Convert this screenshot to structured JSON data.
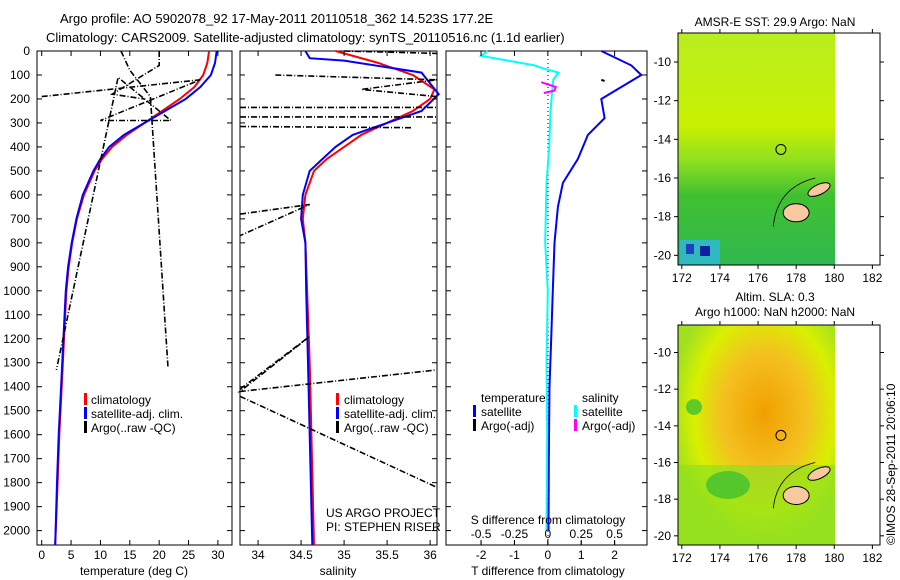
{
  "title_line1": "Argo profile: AO 5902078_92 17-May-2011 20110518_362 14.523S 177.2E",
  "title_line2": "Climatology: CARS2009. Satellite-adjusted climatology: synTS_20110516.nc (1.1d earlier)",
  "colors": {
    "climatology": "#ff0000",
    "satellite": "#0000ff",
    "argo": "#000000",
    "salinity_sat": "#00ffff",
    "salinity_argo": "#ff00ff"
  },
  "chart_data": [
    {
      "type": "line",
      "name": "temperature",
      "xlabel": "temperature (deg C)",
      "ylabel": "depth",
      "xlim": [
        -0.8,
        32.4
      ],
      "ylim": [
        2060,
        0
      ],
      "xticks": [
        "0",
        "5",
        "10",
        "15",
        "20",
        "25",
        "30"
      ],
      "xtick_values": [
        0,
        5,
        10,
        15,
        20,
        25,
        30
      ],
      "yticks": [
        "0",
        "100",
        "200",
        "300",
        "400",
        "500",
        "600",
        "700",
        "800",
        "900",
        "1000",
        "1100",
        "1200",
        "1300",
        "1400",
        "1500",
        "1600",
        "1700",
        "1800",
        "1900",
        "2000"
      ],
      "legend": [
        "climatology",
        "satellite-adj. clim.",
        "Argo(..raw -QC)"
      ],
      "series": [
        {
          "name": "climatology",
          "color": "#ff0000",
          "points": [
            [
              28.5,
              0
            ],
            [
              28.2,
              50
            ],
            [
              27.5,
              100
            ],
            [
              26,
              150
            ],
            [
              23.5,
              200
            ],
            [
              20.5,
              250
            ],
            [
              17.5,
              300
            ],
            [
              14.5,
              350
            ],
            [
              12,
              400
            ],
            [
              10.3,
              450
            ],
            [
              9,
              500
            ],
            [
              7.2,
              600
            ],
            [
              6,
              700
            ],
            [
              5.2,
              800
            ],
            [
              4.6,
              900
            ],
            [
              4.2,
              1000
            ],
            [
              3.8,
              1200
            ],
            [
              3.4,
              1400
            ],
            [
              3,
              1600
            ],
            [
              2.7,
              1800
            ],
            [
              2.3,
              2060
            ]
          ]
        },
        {
          "name": "satellite-adj. clim.",
          "color": "#0000ff",
          "points": [
            [
              29.8,
              0
            ],
            [
              29.5,
              50
            ],
            [
              28.8,
              100
            ],
            [
              27,
              150
            ],
            [
              24.5,
              200
            ],
            [
              21,
              250
            ],
            [
              17.5,
              300
            ],
            [
              14,
              350
            ],
            [
              11.5,
              400
            ],
            [
              10,
              450
            ],
            [
              8.8,
              500
            ],
            [
              7,
              600
            ],
            [
              5.9,
              700
            ],
            [
              5.1,
              800
            ],
            [
              4.5,
              900
            ],
            [
              4.1,
              1000
            ],
            [
              3.7,
              1200
            ],
            [
              3.3,
              1400
            ],
            [
              2.9,
              1600
            ],
            [
              2.6,
              1800
            ],
            [
              2.3,
              2060
            ]
          ]
        },
        {
          "name": "Argo(..raw -QC)",
          "color": "#000000",
          "dashed": true,
          "points": [
            [
              13.5,
              0
            ],
            [
              15,
              80
            ],
            [
              18.5,
              190
            ],
            [
              21.5,
              1320
            ]
          ]
        },
        {
          "name": "Argo(..raw -QC)",
          "color": "#000000",
          "dashed": true,
          "points": [
            [
              0,
              190
            ],
            [
              27,
              120
            ],
            [
              10,
              290
            ],
            [
              22,
              290
            ],
            [
              13,
              110
            ],
            [
              2.5,
              1330
            ]
          ]
        },
        {
          "name": "Argo(..raw -QC)",
          "color": "#000000",
          "dashed": true,
          "points": [
            [
              20,
              0
            ],
            [
              20,
              60
            ],
            [
              12,
              180
            ],
            [
              17.5,
              200
            ]
          ]
        }
      ]
    },
    {
      "type": "line",
      "name": "salinity",
      "xlabel": "salinity",
      "xlim": [
        33.79,
        36.08
      ],
      "ylim": [
        2060,
        0
      ],
      "xticks": [
        "34",
        "34.5",
        "35",
        "35.5",
        "36"
      ],
      "xtick_values": [
        34,
        34.5,
        35,
        35.5,
        36
      ],
      "legend": [
        "climatology",
        "satellite-adj. clim.",
        "Argo(..raw -QC)"
      ],
      "annotation": [
        "US ARGO PROJECT",
        "PI: STEPHEN RISER"
      ],
      "series": [
        {
          "name": "climatology",
          "color": "#ff0000",
          "points": [
            [
              34.9,
              0
            ],
            [
              35.4,
              50
            ],
            [
              35.8,
              100
            ],
            [
              36.05,
              160
            ],
            [
              36,
              200
            ],
            [
              35.8,
              250
            ],
            [
              35.5,
              300
            ],
            [
              35.2,
              350
            ],
            [
              35,
              400
            ],
            [
              34.8,
              450
            ],
            [
              34.65,
              500
            ],
            [
              34.55,
              600
            ],
            [
              34.52,
              700
            ],
            [
              34.55,
              800
            ],
            [
              34.57,
              1000
            ],
            [
              34.6,
              1300
            ],
            [
              34.62,
              1600
            ],
            [
              34.65,
              2060
            ]
          ]
        },
        {
          "name": "satellite-adj. clim.",
          "color": "#0000ff",
          "points": [
            [
              34.55,
              0
            ],
            [
              34.6,
              30
            ],
            [
              35,
              40
            ],
            [
              35.9,
              90
            ],
            [
              36.1,
              180
            ],
            [
              35.9,
              250
            ],
            [
              35.5,
              300
            ],
            [
              35.1,
              350
            ],
            [
              34.9,
              400
            ],
            [
              34.75,
              450
            ],
            [
              34.6,
              500
            ],
            [
              34.52,
              600
            ],
            [
              34.5,
              700
            ],
            [
              34.55,
              800
            ],
            [
              34.56,
              1000
            ],
            [
              34.58,
              1300
            ],
            [
              34.6,
              1600
            ],
            [
              34.63,
              2060
            ]
          ]
        },
        {
          "name": "Argo(..raw -QC)",
          "color": "#000000",
          "dashed": true,
          "points": [
            [
              35,
              0
            ],
            [
              36.08,
              10
            ]
          ]
        },
        {
          "name": "Argo(..raw -QC)",
          "color": "#000000",
          "dashed": true,
          "points": [
            [
              34.2,
              100
            ],
            [
              36.08,
              120
            ],
            [
              35.2,
              160
            ],
            [
              36.08,
              190
            ]
          ]
        },
        {
          "name": "Argo(..raw -QC)",
          "color": "#000000",
          "dashed": true,
          "points": [
            [
              33.79,
              235
            ],
            [
              36.08,
              235
            ]
          ]
        },
        {
          "name": "Argo(..raw -QC)",
          "color": "#000000",
          "dashed": true,
          "points": [
            [
              33.79,
              275
            ],
            [
              36.08,
              275
            ]
          ]
        },
        {
          "name": "Argo(..raw -QC)",
          "color": "#000000",
          "dashed": true,
          "points": [
            [
              33.79,
              315
            ],
            [
              35.8,
              320
            ]
          ]
        },
        {
          "name": "Argo(..raw -QC)",
          "color": "#000000",
          "dashed": true,
          "points": [
            [
              33.79,
              680
            ],
            [
              34.6,
              640
            ],
            [
              33.79,
              770
            ]
          ]
        },
        {
          "name": "Argo(..raw -QC)",
          "color": "#000000",
          "dashed": true,
          "points": [
            [
              33.79,
              1410
            ],
            [
              34.6,
              1190
            ],
            [
              33.79,
              1420
            ],
            [
              36.08,
              1330
            ]
          ]
        },
        {
          "name": "Argo(..raw -QC)",
          "color": "#000000",
          "dashed": true,
          "points": [
            [
              33.79,
              1440
            ],
            [
              36.08,
              1820
            ]
          ]
        }
      ]
    },
    {
      "type": "line",
      "name": "difference",
      "xlabel": "T difference from climatology",
      "xlabel2": "S difference from climatology",
      "xlim": [
        -3.05,
        2.97
      ],
      "ylim": [
        2060,
        0
      ],
      "xticks": [
        "-2",
        "-1",
        "0",
        "1",
        "2"
      ],
      "xtick_values": [
        -2,
        -1,
        0,
        1,
        2
      ],
      "xticks2": [
        "-0.5",
        "-0.25",
        "0",
        "0.25",
        "0.5"
      ],
      "xtick2_values": [
        -0.5,
        -0.25,
        0,
        0.25,
        0.5
      ],
      "legend_temperature": {
        "title": "temperature",
        "items": [
          "satellite",
          "Argo(-adj)"
        ]
      },
      "legend_salinity": {
        "title": "salinity",
        "items": [
          "satellite",
          "Argo(-adj)"
        ]
      },
      "series": [
        {
          "name": "temperature satellite",
          "color": "#0000ff",
          "scale": "T",
          "points": [
            [
              1.6,
              0
            ],
            [
              2.5,
              60
            ],
            [
              2.8,
              100
            ],
            [
              2.2,
              150
            ],
            [
              1.6,
              200
            ],
            [
              1.7,
              280
            ],
            [
              1.2,
              350
            ],
            [
              0.9,
              450
            ],
            [
              0.45,
              550
            ],
            [
              0.3,
              650
            ],
            [
              0.2,
              800
            ],
            [
              0.15,
              1000
            ],
            [
              0.1,
              1200
            ],
            [
              0.05,
              1400
            ],
            [
              0.03,
              1700
            ],
            [
              0.02,
              2000
            ]
          ]
        },
        {
          "name": "salinity satellite",
          "color": "#00ffff",
          "scale": "S",
          "points": [
            [
              -0.45,
              0
            ],
            [
              -0.5,
              20
            ],
            [
              -0.1,
              60
            ],
            [
              -0.05,
              70
            ],
            [
              0.08,
              90
            ],
            [
              0.04,
              120
            ],
            [
              0.02,
              250
            ],
            [
              0.01,
              400
            ],
            [
              -0.01,
              550
            ],
            [
              -0.02,
              800
            ],
            [
              0,
              1000
            ],
            [
              -0.01,
              1300
            ],
            [
              -0.005,
              1600
            ],
            [
              -0.01,
              2000
            ]
          ]
        },
        {
          "name": "salinity Argo(-adj)",
          "color": "#ff00ff",
          "scale": "S",
          "points": [
            [
              -0.05,
              130
            ],
            [
              0.06,
              150
            ],
            [
              0.05,
              165
            ],
            [
              -0.03,
              175
            ]
          ]
        },
        {
          "name": "temperature Argo(-adj)",
          "color": "#000000",
          "scale": "T",
          "points": [
            [
              1.6,
              120
            ],
            [
              1.7,
              125
            ]
          ]
        }
      ]
    },
    {
      "type": "heatmap",
      "name": "sst-map",
      "title": "AMSR-E SST: 29.9 Argo: NaN",
      "xlim": [
        171.8,
        182.4
      ],
      "ylim": [
        -20.5,
        -8.5
      ],
      "xticks": [
        "172",
        "174",
        "176",
        "178",
        "180",
        "182"
      ],
      "xtick_values": [
        172,
        174,
        176,
        178,
        180,
        182
      ],
      "yticks": [
        "-10",
        "-12",
        "-14",
        "-16",
        "-18",
        "-20"
      ],
      "ytick_values": [
        -10,
        -12,
        -14,
        -16,
        -18,
        -20
      ],
      "profile_location": [
        177.2,
        -14.523
      ]
    },
    {
      "type": "heatmap",
      "name": "sla-map",
      "title": "Altim. SLA: 0.3",
      "subtitle": "Argo h1000: NaN h2000: NaN",
      "xlim": [
        171.8,
        182.4
      ],
      "ylim": [
        -20.5,
        -8.5
      ],
      "xticks": [
        "172",
        "174",
        "176",
        "178",
        "180",
        "182"
      ],
      "xtick_values": [
        172,
        174,
        176,
        178,
        180,
        182
      ],
      "yticks": [
        "-10",
        "-12",
        "-14",
        "-16",
        "-18",
        "-20"
      ],
      "ytick_values": [
        -10,
        -12,
        -14,
        -16,
        -18,
        -20
      ],
      "profile_location": [
        177.2,
        -14.523
      ]
    }
  ],
  "credit": "©IMOS 28-Sep-2011 20:06:10"
}
